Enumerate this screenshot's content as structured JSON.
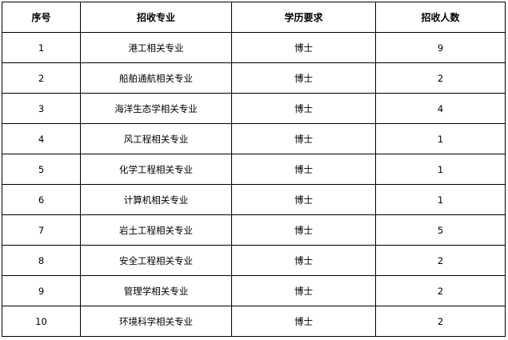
{
  "table": {
    "headers": [
      "序号",
      "招收专业",
      "学历要求",
      "招收人数"
    ],
    "rows": [
      [
        "1",
        "港工相关专业",
        "博士",
        "9"
      ],
      [
        "2",
        "船舶通航相关专业",
        "博士",
        "2"
      ],
      [
        "3",
        "海洋生态学相关专业",
        "博士",
        "4"
      ],
      [
        "4",
        "风工程相关专业",
        "博士",
        "1"
      ],
      [
        "5",
        "化学工程相关专业",
        "博士",
        "1"
      ],
      [
        "6",
        "计算机相关专业",
        "博士",
        "1"
      ],
      [
        "7",
        "岩土工程相关专业",
        "博士",
        "5"
      ],
      [
        "8",
        "安全工程相关专业",
        "博士",
        "2"
      ],
      [
        "9",
        "管理学相关专业",
        "博士",
        "2"
      ],
      [
        "10",
        "环境科学相关专业",
        "博士",
        "2"
      ]
    ]
  }
}
